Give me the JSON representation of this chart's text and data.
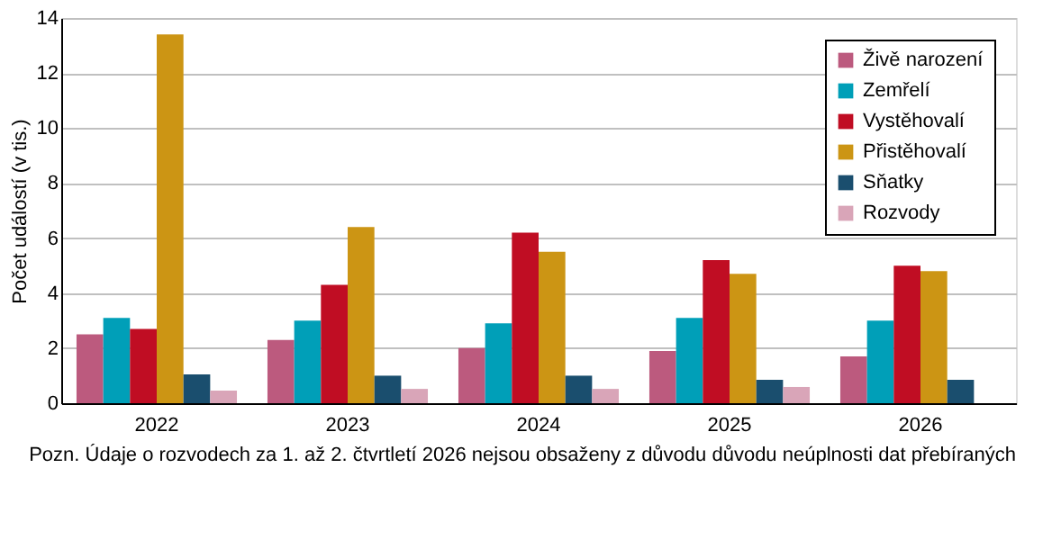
{
  "chart_data": {
    "type": "bar",
    "ylabel": "Počet událostí (v tis.)",
    "categories": [
      "2022",
      "2023",
      "2024",
      "2025",
      "2026"
    ],
    "series": [
      {
        "name": "Živě narození",
        "color": "#bc5a7e",
        "values": [
          2.5,
          2.3,
          2.0,
          1.9,
          1.7
        ]
      },
      {
        "name": "Zemřelí",
        "color": "#009fb8",
        "values": [
          3.1,
          3.0,
          2.9,
          3.1,
          3.0
        ]
      },
      {
        "name": "Vystěhovalí",
        "color": "#c00d23",
        "values": [
          2.7,
          4.3,
          6.2,
          5.2,
          5.0
        ]
      },
      {
        "name": "Přistěhovalí",
        "color": "#cc9514",
        "values": [
          13.4,
          6.4,
          5.5,
          4.7,
          4.8
        ]
      },
      {
        "name": "Sňatky",
        "color": "#1a4e6e",
        "values": [
          1.05,
          1.0,
          1.0,
          0.85,
          0.85
        ]
      },
      {
        "name": "Rozvody",
        "color": "#d9a5b8",
        "values": [
          0.46,
          0.52,
          0.52,
          0.59,
          null
        ]
      }
    ],
    "ylim": [
      0,
      14
    ],
    "yticks": [
      0,
      2,
      4,
      6,
      8,
      10,
      12,
      14
    ],
    "grid": "y",
    "legend": "top right",
    "annotations": [
      "Pozn. Údaje o rozvodech za 1. až 2. čtvrtletí 2026 nejsou obsaženy z důvodu  důvodu neúplnosti dat přebíraných"
    ]
  }
}
